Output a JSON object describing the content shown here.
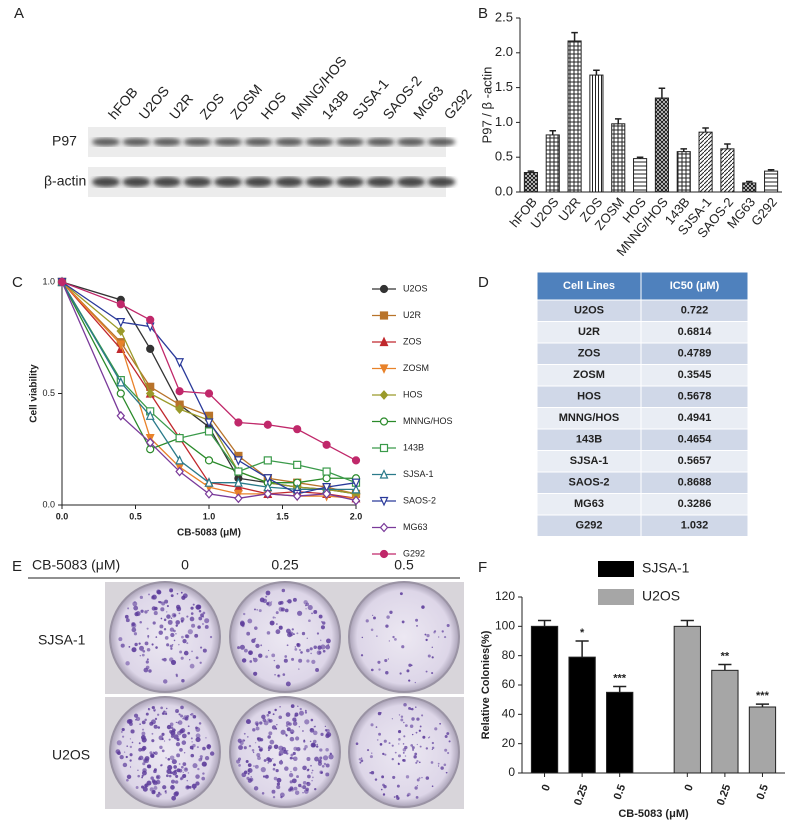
{
  "blot": {
    "panel_label": "A",
    "lanes": [
      "hFOB",
      "U2OS",
      "U2R",
      "ZOS",
      "ZOSM",
      "HOS",
      "MNNG/HOS",
      "143B",
      "SJSA-1",
      "SAOS-2",
      "MG63",
      "G292"
    ],
    "rows": [
      "P97",
      "β-actin"
    ]
  },
  "chart_data": [
    {
      "type": "bar",
      "panel_label": "B",
      "ylabel": "P97 / β -actin",
      "categories": [
        "hFOB",
        "U2OS",
        "U2R",
        "ZOS",
        "ZOSM",
        "HOS",
        "MNNG/HOS",
        "143B",
        "SJSA-1",
        "SAOS-2",
        "MG63",
        "G292"
      ],
      "values": [
        0.28,
        0.82,
        2.17,
        1.68,
        0.98,
        0.48,
        1.35,
        0.58,
        0.86,
        0.62,
        0.13,
        0.3
      ],
      "errors": [
        0.02,
        0.06,
        0.12,
        0.07,
        0.07,
        0.02,
        0.14,
        0.04,
        0.06,
        0.07,
        0.02,
        0.02
      ],
      "color": "#222222",
      "ylim": [
        0,
        2.5
      ],
      "yticks": [
        {
          "value": 0,
          "label": "0.0"
        },
        0.5,
        {
          "value": 1,
          "label": "1.0"
        },
        1.5,
        {
          "value": 2,
          "label": "2.0"
        },
        2.5
      ]
    },
    {
      "type": "line",
      "panel_label": "C",
      "xlabel": "CB-5083 (μM)",
      "ylabel": "Cell viability",
      "x": [
        0,
        0.4,
        0.6,
        0.8,
        1.0,
        1.2,
        1.4,
        1.6,
        1.8,
        2.0
      ],
      "series": [
        {
          "name": "U2OS",
          "color": "#333333",
          "marker": "o",
          "filled": true,
          "values": [
            1.0,
            0.92,
            0.7,
            0.45,
            0.35,
            0.12,
            0.1,
            0.08,
            0.07,
            0.05
          ]
        },
        {
          "name": "U2R",
          "color": "#b8732a",
          "marker": "s",
          "filled": true,
          "values": [
            1.0,
            0.73,
            0.53,
            0.45,
            0.4,
            0.22,
            0.12,
            0.1,
            0.08,
            0.05
          ]
        },
        {
          "name": "ZOS",
          "color": "#c0282d",
          "marker": "^",
          "filled": true,
          "values": [
            1.0,
            0.7,
            0.5,
            0.3,
            0.1,
            0.08,
            0.05,
            0.06,
            0.05,
            0.03
          ]
        },
        {
          "name": "ZOSM",
          "color": "#e8822a",
          "marker": "v",
          "filled": true,
          "values": [
            1.0,
            0.72,
            0.3,
            0.17,
            0.08,
            0.05,
            0.05,
            0.04,
            0.04,
            0.03
          ]
        },
        {
          "name": "HOS",
          "color": "#9a9a2a",
          "marker": "D",
          "filled": true,
          "values": [
            1.0,
            0.78,
            0.5,
            0.43,
            0.38,
            0.15,
            0.1,
            0.08,
            0.07,
            0.05
          ]
        },
        {
          "name": "MNNG/HOS",
          "color": "#2a8a2a",
          "marker": "o",
          "filled": false,
          "values": [
            1.0,
            0.5,
            0.25,
            0.3,
            0.2,
            0.15,
            0.1,
            0.1,
            0.12,
            0.12
          ]
        },
        {
          "name": "143B",
          "color": "#3a9a4a",
          "marker": "s",
          "filled": false,
          "values": [
            1.0,
            0.56,
            0.42,
            0.3,
            0.33,
            0.15,
            0.2,
            0.18,
            0.15,
            0.1
          ]
        },
        {
          "name": "SJSA-1",
          "color": "#2a7a8a",
          "marker": "^",
          "filled": false,
          "values": [
            1.0,
            0.55,
            0.4,
            0.2,
            0.1,
            0.1,
            0.08,
            0.07,
            0.07,
            0.07
          ]
        },
        {
          "name": "SAOS-2",
          "color": "#2a3a9a",
          "marker": "v",
          "filled": false,
          "values": [
            1.0,
            0.82,
            0.8,
            0.64,
            0.37,
            0.2,
            0.12,
            0.05,
            0.08,
            0.1
          ]
        },
        {
          "name": "MG63",
          "color": "#7a3a9a",
          "marker": "D",
          "filled": false,
          "values": [
            1.0,
            0.4,
            0.28,
            0.15,
            0.05,
            0.03,
            0.05,
            0.04,
            0.05,
            0.02
          ]
        },
        {
          "name": "G292",
          "color": "#c0286a",
          "marker": "o",
          "filled": true,
          "values": [
            1.0,
            0.9,
            0.83,
            0.51,
            0.5,
            0.37,
            0.36,
            0.34,
            0.27,
            0.2
          ]
        }
      ],
      "xlim": [
        0,
        2
      ],
      "xticks": [
        {
          "value": 0,
          "label": "0.0"
        },
        0.5,
        {
          "value": 1,
          "label": "1.0"
        },
        1.5,
        {
          "value": 2,
          "label": "2.0"
        }
      ],
      "ylim": [
        0,
        1
      ],
      "yticks": [
        {
          "value": 0,
          "label": "0.0"
        },
        0.5,
        {
          "value": 1,
          "label": "1.0"
        }
      ]
    },
    {
      "type": "bar",
      "panel_label": "F",
      "xlabel": "CB-5083 (μM)",
      "ylabel": "Relative Colonies(%)",
      "categories": [
        "0",
        "0.25",
        "0.5"
      ],
      "series": [
        {
          "name": "SJSA-1",
          "color": "#000000",
          "values": [
            100,
            79,
            55
          ],
          "errors": [
            4,
            11,
            4
          ],
          "annotations": [
            null,
            "*",
            "***"
          ]
        },
        {
          "name": "U2OS",
          "color": "#a6a6a6",
          "values": [
            100,
            70,
            45
          ],
          "errors": [
            4,
            4,
            2
          ],
          "annotations": [
            null,
            "**",
            "***"
          ]
        }
      ],
      "ylim": [
        0,
        120
      ],
      "yticks": [
        0,
        20,
        40,
        60,
        80,
        100,
        120
      ]
    }
  ],
  "table": {
    "panel_label": "D",
    "header": [
      "Cell Lines",
      "IC50 (μM)"
    ],
    "rows": [
      [
        "U2OS",
        "0.722"
      ],
      [
        "U2R",
        "0.6814"
      ],
      [
        "ZOS",
        "0.4789"
      ],
      [
        "ZOSM",
        "0.3545"
      ],
      [
        "HOS",
        "0.5678"
      ],
      [
        "MNNG/HOS",
        "0.4941"
      ],
      [
        "143B",
        "0.4654"
      ],
      [
        "SJSA-1",
        "0.5657"
      ],
      [
        "SAOS-2",
        "0.8688"
      ],
      [
        "MG63",
        "0.3286"
      ],
      [
        "G292",
        "1.032"
      ]
    ]
  },
  "colony_assay": {
    "panel_label": "E",
    "treatment": "CB-5083 (μM)",
    "doses": [
      "0",
      "0.25",
      "0.5"
    ],
    "cell_lines": [
      "SJSA-1",
      "U2OS"
    ]
  }
}
